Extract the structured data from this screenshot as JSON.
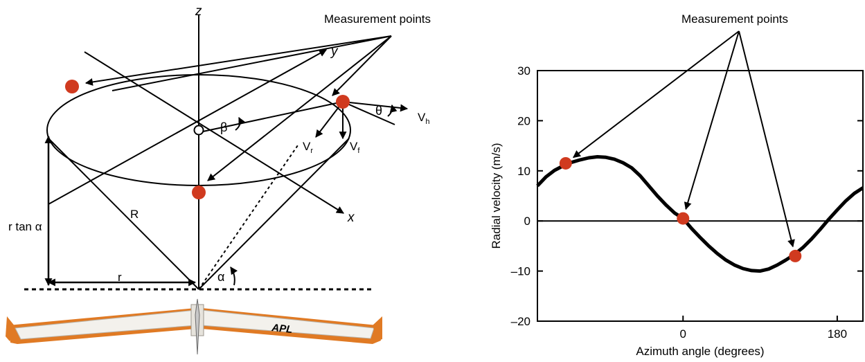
{
  "diagram": {
    "measurement_label": "Measurement points",
    "axis_z": "z",
    "axis_y": "y",
    "axis_x": "x",
    "origin": "O",
    "beta": "β",
    "theta": "θ",
    "alpha": "α",
    "R": "R",
    "r": "r",
    "r_tan_alpha": "r tan α",
    "V": "V",
    "sub_h": "h",
    "sub_r": "r",
    "sub_f": "f",
    "aircraft_marking": "APL",
    "point_color": "#d03a1f",
    "aircraft_color": "#e07a24"
  },
  "chart_data": {
    "type": "line",
    "title": "",
    "annotation": "Measurement points",
    "xlabel": "Azimuth angle (degrees)",
    "ylabel": "Radial velocity (m/s)",
    "xlim": [
      -170,
      210
    ],
    "ylim": [
      -20,
      30
    ],
    "x_ticks": [
      0,
      180
    ],
    "y_ticks": [
      -20,
      -10,
      0,
      10,
      20,
      30
    ],
    "x_tick_labels": [
      "0",
      "180"
    ],
    "y_tick_labels": [
      "–20",
      "–10",
      "0",
      "10",
      "20",
      "30"
    ],
    "zero_line": true,
    "series": [
      {
        "x": [
          -170,
          -160,
          -150,
          -140,
          -130,
          -120,
          -110,
          -100,
          -90,
          -80,
          -70,
          -60,
          -50,
          -40,
          -30,
          -20,
          -10,
          0,
          10,
          20,
          30,
          40,
          50,
          60,
          70,
          80,
          90,
          100,
          110,
          120,
          130,
          140,
          150,
          160,
          170,
          180,
          190,
          200,
          210
        ],
        "y": [
          7,
          8.8,
          10.1,
          11,
          11.7,
          12.2,
          12.6,
          12.8,
          12.7,
          12.3,
          11.6,
          10.6,
          9,
          7,
          5,
          3.2,
          1.6,
          0.5,
          -1.5,
          -3.3,
          -5,
          -6.5,
          -7.8,
          -8.8,
          -9.5,
          -9.9,
          -10,
          -9.6,
          -8.8,
          -7.8,
          -6.7,
          -5.3,
          -3.6,
          -1.7,
          0.3,
          2.2,
          4,
          5.5,
          6.6
        ]
      }
    ],
    "measurement_points": [
      {
        "x": -137,
        "y": 11.5
      },
      {
        "x": 0,
        "y": 0.5
      },
      {
        "x": 131,
        "y": -7
      }
    ],
    "point_color": "#d03a1f"
  }
}
